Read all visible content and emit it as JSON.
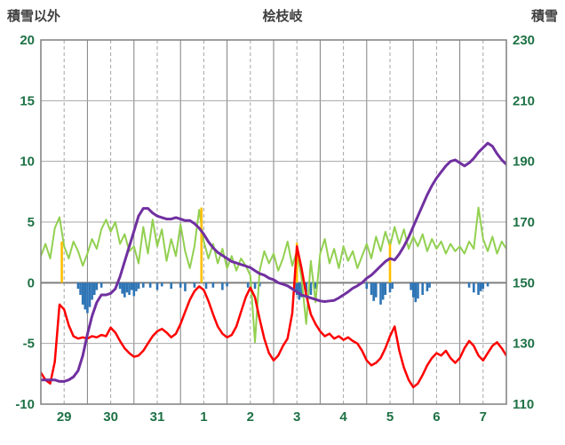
{
  "header": {
    "left_axis_title": "積雪以外",
    "title": "桧枝岐",
    "right_axis_title": "積雪"
  },
  "chart_data": {
    "type": "line",
    "title": "桧枝岐",
    "x_axis": {
      "labels": [
        "29",
        "30",
        "31",
        "1",
        "2",
        "3",
        "4",
        "5",
        "6",
        "7"
      ],
      "range": [
        0,
        10
      ],
      "grid": "solid lines at day boundaries, dashed lines at mid-day"
    },
    "left_axis": {
      "title": "積雪以外",
      "ticks": [
        20,
        15,
        10,
        5,
        0,
        -5,
        -10
      ],
      "range": [
        -10,
        20
      ]
    },
    "right_axis": {
      "title": "積雪",
      "ticks": [
        230,
        210,
        190,
        170,
        150,
        130,
        110
      ],
      "range": [
        110,
        230
      ]
    },
    "x_step": 0.1,
    "colors": {
      "axis_text": "#1E7145",
      "title_text": "#404040",
      "grid": "#A6A6A6",
      "grid_solid": "#808080",
      "zero_line": "#7F7F7F",
      "border": "#7F7F7F"
    },
    "series": [
      {
        "name": "precipitation",
        "type": "bar",
        "axis": "left",
        "color": "#2E75B6",
        "points": [
          [
            0.8,
            -0.5
          ],
          [
            0.85,
            -1.0
          ],
          [
            0.9,
            -1.8
          ],
          [
            0.95,
            -2.2
          ],
          [
            1.0,
            -2.5
          ],
          [
            1.05,
            -2.0
          ],
          [
            1.1,
            -1.4
          ],
          [
            1.15,
            -1.0
          ],
          [
            1.2,
            -0.6
          ],
          [
            1.3,
            -0.4
          ],
          [
            1.7,
            -0.5
          ],
          [
            1.75,
            -0.9
          ],
          [
            1.8,
            -1.2
          ],
          [
            1.85,
            -0.8
          ],
          [
            1.9,
            -1.0
          ],
          [
            1.95,
            -0.6
          ],
          [
            2.0,
            -1.1
          ],
          [
            2.05,
            -0.7
          ],
          [
            2.1,
            -0.5
          ],
          [
            2.2,
            -0.4
          ],
          [
            2.35,
            -0.4
          ],
          [
            2.5,
            -0.6
          ],
          [
            2.6,
            -0.3
          ],
          [
            2.8,
            -0.5
          ],
          [
            3.0,
            -0.4
          ],
          [
            3.1,
            -0.7
          ],
          [
            3.3,
            -0.4
          ],
          [
            3.55,
            -0.5
          ],
          [
            3.7,
            -0.4
          ],
          [
            3.9,
            -0.6
          ],
          [
            4.0,
            -0.3
          ],
          [
            4.45,
            -0.4
          ],
          [
            4.6,
            -0.5
          ],
          [
            4.7,
            -0.3
          ],
          [
            5.45,
            -0.6
          ],
          [
            5.5,
            -1.0
          ],
          [
            5.55,
            -1.4
          ],
          [
            5.6,
            -1.2
          ],
          [
            5.7,
            -0.8
          ],
          [
            5.8,
            -1.0
          ],
          [
            5.9,
            -0.5
          ],
          [
            7.0,
            -0.5
          ],
          [
            7.1,
            -1.0
          ],
          [
            7.15,
            -1.5
          ],
          [
            7.2,
            -1.2
          ],
          [
            7.3,
            -1.8
          ],
          [
            7.35,
            -1.4
          ],
          [
            7.4,
            -1.0
          ],
          [
            7.5,
            -0.8
          ],
          [
            7.55,
            -0.5
          ],
          [
            7.95,
            -0.6
          ],
          [
            8.0,
            -1.2
          ],
          [
            8.05,
            -1.6
          ],
          [
            8.1,
            -1.3
          ],
          [
            8.2,
            -1.0
          ],
          [
            8.3,
            -0.7
          ],
          [
            8.35,
            -0.4
          ],
          [
            9.2,
            -0.4
          ],
          [
            9.3,
            -0.8
          ],
          [
            9.4,
            -1.0
          ],
          [
            9.45,
            -0.7
          ],
          [
            9.5,
            -0.5
          ],
          [
            9.6,
            -0.3
          ]
        ]
      },
      {
        "name": "wind",
        "type": "line",
        "axis": "left",
        "color": "#92D050",
        "values": [
          2.2,
          3.2,
          2.0,
          4.5,
          5.4,
          3.0,
          2.0,
          3.4,
          2.6,
          1.4,
          2.4,
          3.6,
          2.8,
          4.4,
          5.2,
          4.2,
          5.0,
          3.2,
          4.0,
          2.6,
          3.0,
          1.6,
          4.6,
          2.4,
          5.2,
          3.0,
          4.4,
          1.8,
          3.6,
          2.2,
          4.8,
          2.6,
          1.2,
          3.0,
          6.0,
          3.4,
          2.0,
          3.2,
          1.6,
          2.8,
          1.2,
          2.2,
          1.0,
          2.0,
          1.4,
          0.6,
          -4.9,
          1.0,
          2.6,
          1.6,
          2.4,
          1.0,
          2.0,
          3.4,
          1.4,
          2.6,
          0.4,
          -3.4,
          1.8,
          -1.6,
          2.4,
          3.6,
          1.6,
          2.8,
          1.2,
          3.0,
          1.8,
          2.6,
          1.2,
          2.2,
          3.2,
          2.0,
          3.8,
          2.6,
          4.2,
          3.0,
          4.6,
          3.2,
          4.4,
          2.8,
          3.8,
          3.0,
          4.0,
          2.6,
          3.6,
          2.8,
          3.4,
          2.4,
          3.2,
          2.6,
          3.0,
          2.4,
          3.4,
          2.8,
          6.2,
          3.6,
          2.6,
          3.8,
          2.4,
          3.4,
          2.8
        ]
      },
      {
        "name": "snowfall-event",
        "type": "bar",
        "axis": "left",
        "color": "#FFC000",
        "points": [
          [
            0.45,
            3.4
          ],
          [
            3.45,
            6.2
          ],
          [
            5.5,
            3.3
          ],
          [
            7.5,
            3.2
          ]
        ]
      },
      {
        "name": "temperature",
        "type": "line",
        "axis": "left",
        "color": "#FF0000",
        "values": [
          -7.4,
          -8.0,
          -8.3,
          -6.5,
          -1.8,
          -2.2,
          -3.5,
          -4.4,
          -4.6,
          -4.5,
          -4.6,
          -4.4,
          -4.5,
          -4.3,
          -4.4,
          -3.7,
          -4.1,
          -4.8,
          -5.4,
          -5.8,
          -6.1,
          -6.0,
          -5.6,
          -5.0,
          -4.4,
          -4.0,
          -3.8,
          -4.1,
          -4.5,
          -4.2,
          -3.4,
          -2.4,
          -1.4,
          -0.7,
          -0.3,
          -0.6,
          -1.5,
          -2.6,
          -3.6,
          -4.2,
          -4.5,
          -4.3,
          -3.6,
          -2.4,
          -1.2,
          -0.4,
          -1.2,
          -3.0,
          -4.6,
          -5.8,
          -6.4,
          -6.0,
          -5.2,
          -4.6,
          -2.5,
          3.0,
          1.2,
          -1.0,
          -2.6,
          -3.4,
          -4.0,
          -4.4,
          -4.2,
          -4.6,
          -4.4,
          -4.7,
          -4.5,
          -4.8,
          -5.0,
          -5.6,
          -6.4,
          -6.8,
          -6.6,
          -6.2,
          -5.4,
          -4.4,
          -3.6,
          -5.6,
          -7.0,
          -8.0,
          -8.6,
          -8.3,
          -7.6,
          -6.8,
          -6.2,
          -5.8,
          -6.0,
          -5.6,
          -6.2,
          -6.6,
          -6.2,
          -5.4,
          -4.8,
          -5.2,
          -6.0,
          -6.4,
          -5.8,
          -5.2,
          -4.9,
          -5.4,
          -6.0
        ]
      },
      {
        "name": "snow-depth",
        "type": "line",
        "axis": "right",
        "color": "#7030A0",
        "values": [
          118,
          118,
          118,
          118,
          117.5,
          117.5,
          118,
          119,
          121,
          126,
          133,
          139,
          143.5,
          146,
          146,
          146.5,
          148,
          152,
          157,
          162,
          167,
          172,
          174.5,
          174.5,
          173,
          172,
          171.5,
          171,
          171,
          171.5,
          171,
          170.5,
          170.5,
          169.5,
          168,
          166,
          163.5,
          161.5,
          160,
          159,
          158,
          157,
          156.5,
          156,
          155.5,
          155,
          154,
          153,
          152.5,
          151.5,
          151,
          150,
          149.5,
          149,
          148,
          147,
          146,
          145.5,
          145,
          144.5,
          144,
          143.8,
          144,
          144.2,
          145,
          146,
          147,
          148.2,
          149,
          150,
          151.5,
          152.5,
          154,
          155.5,
          157,
          158,
          157.5,
          159.5,
          162,
          165,
          168.5,
          172,
          175.5,
          179,
          182,
          184.5,
          186.5,
          188.5,
          190,
          190.5,
          189.5,
          188.5,
          189.5,
          191,
          193,
          194.5,
          196,
          195,
          192.5,
          190.5,
          189
        ]
      }
    ]
  }
}
